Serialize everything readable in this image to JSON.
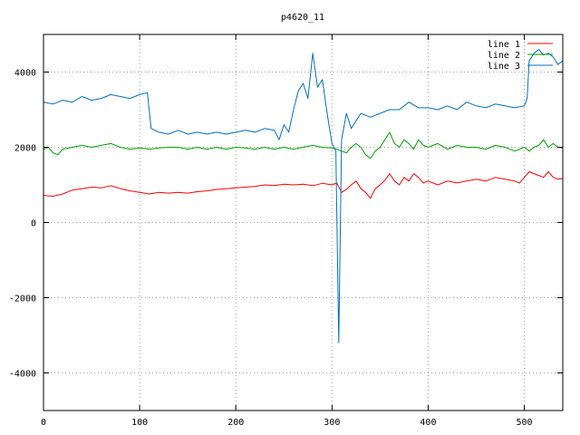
{
  "chart_data": {
    "type": "line",
    "title": "p4620_11",
    "xlabel": "",
    "ylabel": "",
    "xlim": [
      0,
      540
    ],
    "ylim": [
      -5000,
      5000
    ],
    "xticks": [
      0,
      100,
      200,
      300,
      400,
      500
    ],
    "yticks": [
      -4000,
      -2000,
      0,
      2000,
      4000
    ],
    "grid": true,
    "legend_position": "top-right",
    "series": [
      {
        "name": "line 1",
        "color": "#ff0000",
        "points": [
          [
            0,
            720
          ],
          [
            10,
            700
          ],
          [
            20,
            760
          ],
          [
            30,
            860
          ],
          [
            40,
            900
          ],
          [
            50,
            940
          ],
          [
            60,
            920
          ],
          [
            70,
            980
          ],
          [
            80,
            900
          ],
          [
            90,
            840
          ],
          [
            100,
            800
          ],
          [
            110,
            760
          ],
          [
            120,
            800
          ],
          [
            130,
            780
          ],
          [
            140,
            800
          ],
          [
            150,
            780
          ],
          [
            160,
            820
          ],
          [
            170,
            840
          ],
          [
            180,
            880
          ],
          [
            190,
            900
          ],
          [
            200,
            920
          ],
          [
            210,
            940
          ],
          [
            220,
            960
          ],
          [
            230,
            1000
          ],
          [
            240,
            980
          ],
          [
            250,
            1020
          ],
          [
            260,
            1000
          ],
          [
            270,
            1020
          ],
          [
            280,
            980
          ],
          [
            290,
            1040
          ],
          [
            300,
            1000
          ],
          [
            305,
            1050
          ],
          [
            310,
            800
          ],
          [
            315,
            880
          ],
          [
            320,
            1000
          ],
          [
            325,
            1100
          ],
          [
            330,
            900
          ],
          [
            335,
            800
          ],
          [
            340,
            640
          ],
          [
            345,
            900
          ],
          [
            350,
            1000
          ],
          [
            355,
            1120
          ],
          [
            360,
            1300
          ],
          [
            365,
            1100
          ],
          [
            370,
            1000
          ],
          [
            375,
            1200
          ],
          [
            380,
            1100
          ],
          [
            385,
            1300
          ],
          [
            390,
            1200
          ],
          [
            395,
            1050
          ],
          [
            400,
            1100
          ],
          [
            410,
            1000
          ],
          [
            420,
            1100
          ],
          [
            430,
            1050
          ],
          [
            440,
            1100
          ],
          [
            450,
            1150
          ],
          [
            460,
            1100
          ],
          [
            470,
            1200
          ],
          [
            480,
            1150
          ],
          [
            490,
            1100
          ],
          [
            495,
            1050
          ],
          [
            500,
            1200
          ],
          [
            505,
            1350
          ],
          [
            510,
            1300
          ],
          [
            515,
            1250
          ],
          [
            520,
            1200
          ],
          [
            525,
            1350
          ],
          [
            530,
            1200
          ],
          [
            535,
            1150
          ],
          [
            540,
            1170
          ]
        ]
      },
      {
        "name": "line 2",
        "color": "#00a000",
        "points": [
          [
            0,
            1950
          ],
          [
            5,
            2000
          ],
          [
            10,
            1850
          ],
          [
            15,
            1800
          ],
          [
            20,
            1950
          ],
          [
            30,
            2000
          ],
          [
            40,
            2050
          ],
          [
            50,
            2000
          ],
          [
            60,
            2050
          ],
          [
            70,
            2100
          ],
          [
            80,
            2000
          ],
          [
            90,
            1950
          ],
          [
            100,
            1980
          ],
          [
            110,
            1950
          ],
          [
            120,
            1980
          ],
          [
            130,
            2000
          ],
          [
            140,
            2000
          ],
          [
            150,
            1950
          ],
          [
            160,
            2000
          ],
          [
            170,
            1950
          ],
          [
            180,
            2000
          ],
          [
            190,
            1950
          ],
          [
            200,
            2000
          ],
          [
            210,
            1980
          ],
          [
            220,
            1950
          ],
          [
            230,
            2000
          ],
          [
            240,
            1950
          ],
          [
            250,
            2000
          ],
          [
            260,
            1950
          ],
          [
            270,
            2000
          ],
          [
            280,
            2050
          ],
          [
            290,
            2000
          ],
          [
            300,
            1980
          ],
          [
            305,
            1950
          ],
          [
            310,
            1900
          ],
          [
            315,
            1850
          ],
          [
            320,
            2000
          ],
          [
            325,
            2100
          ],
          [
            330,
            2000
          ],
          [
            335,
            1800
          ],
          [
            340,
            1700
          ],
          [
            345,
            1900
          ],
          [
            350,
            2000
          ],
          [
            355,
            2200
          ],
          [
            360,
            2400
          ],
          [
            365,
            2100
          ],
          [
            370,
            2000
          ],
          [
            375,
            2200
          ],
          [
            380,
            2100
          ],
          [
            385,
            1950
          ],
          [
            390,
            2200
          ],
          [
            395,
            2050
          ],
          [
            400,
            2000
          ],
          [
            410,
            2100
          ],
          [
            420,
            1950
          ],
          [
            430,
            2050
          ],
          [
            440,
            2000
          ],
          [
            450,
            2000
          ],
          [
            460,
            1950
          ],
          [
            470,
            2050
          ],
          [
            480,
            2000
          ],
          [
            490,
            1900
          ],
          [
            495,
            1950
          ],
          [
            500,
            2000
          ],
          [
            505,
            1900
          ],
          [
            510,
            2000
          ],
          [
            515,
            2050
          ],
          [
            520,
            2200
          ],
          [
            525,
            2000
          ],
          [
            530,
            2100
          ],
          [
            535,
            2000
          ],
          [
            540,
            1980
          ]
        ]
      },
      {
        "name": "line 3",
        "color": "#0070c0",
        "points": [
          [
            0,
            3200
          ],
          [
            10,
            3150
          ],
          [
            20,
            3250
          ],
          [
            30,
            3200
          ],
          [
            40,
            3350
          ],
          [
            50,
            3250
          ],
          [
            60,
            3300
          ],
          [
            70,
            3400
          ],
          [
            80,
            3350
          ],
          [
            90,
            3300
          ],
          [
            100,
            3400
          ],
          [
            108,
            3450
          ],
          [
            112,
            2500
          ],
          [
            120,
            2400
          ],
          [
            130,
            2350
          ],
          [
            140,
            2450
          ],
          [
            150,
            2350
          ],
          [
            160,
            2400
          ],
          [
            170,
            2350
          ],
          [
            180,
            2400
          ],
          [
            190,
            2350
          ],
          [
            200,
            2400
          ],
          [
            210,
            2450
          ],
          [
            220,
            2400
          ],
          [
            230,
            2500
          ],
          [
            240,
            2450
          ],
          [
            245,
            2200
          ],
          [
            250,
            2600
          ],
          [
            255,
            2400
          ],
          [
            260,
            3000
          ],
          [
            265,
            3500
          ],
          [
            270,
            3700
          ],
          [
            275,
            3300
          ],
          [
            280,
            4500
          ],
          [
            285,
            3600
          ],
          [
            290,
            3800
          ],
          [
            295,
            2900
          ],
          [
            300,
            2100
          ],
          [
            304,
            1900
          ],
          [
            307,
            -3200
          ],
          [
            310,
            2200
          ],
          [
            315,
            2900
          ],
          [
            320,
            2500
          ],
          [
            325,
            2700
          ],
          [
            330,
            2900
          ],
          [
            340,
            2800
          ],
          [
            350,
            2900
          ],
          [
            360,
            3000
          ],
          [
            370,
            3000
          ],
          [
            380,
            3200
          ],
          [
            390,
            3050
          ],
          [
            400,
            3050
          ],
          [
            410,
            3000
          ],
          [
            420,
            3100
          ],
          [
            430,
            3000
          ],
          [
            440,
            3200
          ],
          [
            450,
            3100
          ],
          [
            460,
            3050
          ],
          [
            470,
            3150
          ],
          [
            480,
            3100
          ],
          [
            490,
            3050
          ],
          [
            500,
            3100
          ],
          [
            503,
            3300
          ],
          [
            505,
            4300
          ],
          [
            510,
            4500
          ],
          [
            515,
            4600
          ],
          [
            520,
            4450
          ],
          [
            525,
            4500
          ],
          [
            530,
            4400
          ],
          [
            535,
            4200
          ],
          [
            540,
            4300
          ]
        ]
      }
    ]
  }
}
